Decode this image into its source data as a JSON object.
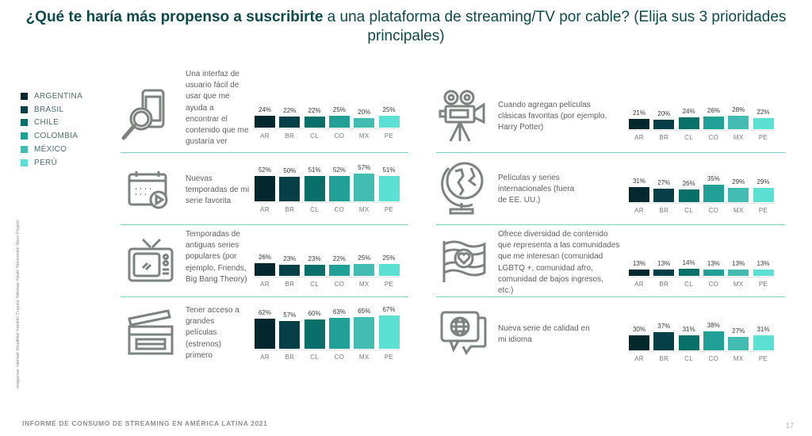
{
  "title": {
    "bold": "¿Qué te haría más propenso a suscribirte",
    "regular": " a una plataforma de streaming/TV por cable? (Elija sus 3 prioridades principales)"
  },
  "legend": [
    {
      "label": "ARGENTINA",
      "color": "#02272c"
    },
    {
      "label": "BRASIL",
      "color": "#073f49"
    },
    {
      "label": "CHILE",
      "color": "#087068"
    },
    {
      "label": "COLOMBIA",
      "color": "#20a096"
    },
    {
      "label": "MÉXICO",
      "color": "#43bcb3"
    },
    {
      "label": "PERÚ",
      "color": "#5ce0d4"
    }
  ],
  "credit": "Imágenes: rahmat/ Smalllike/ monkik/ Cuputo/ Nithinan Tatah/ Nociconist/ Noun Project",
  "footer": "INFORME DE CONSUMO DE STREAMING EN AMÉRICA LATINA 2021",
  "page_number": "17",
  "categories": [
    "AR",
    "BR",
    "CL",
    "CO",
    "MX",
    "PE"
  ],
  "panels": [
    {
      "icon": "phone-search-icon",
      "text": "Una interfaz de usuario fácil de usar que me ayuda a encontrar el contenido que me gustaría ver",
      "values_label": [
        "24%",
        "22%",
        "22%",
        "25%",
        "20%",
        "25%"
      ]
    },
    {
      "icon": "calendar-play-icon",
      "text": "Nuevas temporadas de mi serie favorita",
      "values_label": [
        "52%",
        "50%",
        "51%",
        "52%",
        "57%",
        "51%"
      ]
    },
    {
      "icon": "retro-tv-icon",
      "text": "Temporadas de antiguas series populares (por ejemplo, Friends, Big Bang Theory)",
      "values_label": [
        "26%",
        "23%",
        "23%",
        "22%",
        "25%",
        "25%"
      ]
    },
    {
      "icon": "clapperboard-icon",
      "text": "Tener acceso a grandes películas (estrenos) primero",
      "values_label": [
        "62%",
        "57%",
        "60%",
        "63%",
        "65%",
        "67%"
      ]
    },
    {
      "icon": "film-camera-icon",
      "text": "Cuando agregan películas clásicas favoritas (por ejemplo, Harry Potter)",
      "values_label": [
        "21%",
        "20%",
        "24%",
        "26%",
        "28%",
        "22%"
      ]
    },
    {
      "icon": "globe-icon",
      "text": "Películas y series internacionales (fuera de EE. UU.)",
      "values_label": [
        "31%",
        "27%",
        "26%",
        "35%",
        "29%",
        "29%"
      ]
    },
    {
      "icon": "flag-heart-icon",
      "text": "Ofrece diversidad de contenido que representa a las comunidades que me interesan (comunidad LGBTQ +, comunidad afro, comunidad de bajos ingresos, etc.)",
      "values_label": [
        "13%",
        "13%",
        "14%",
        "13%",
        "13%",
        "13%"
      ]
    },
    {
      "icon": "speech-globe-icon",
      "text": "Nueva serie de calidad en mi idioma",
      "values_label": [
        "30%",
        "37%",
        "31%",
        "38%",
        "27%",
        "31%"
      ]
    }
  ],
  "chart_data": {
    "type": "bar",
    "title": "¿Qué te haría más propenso a suscribirte a una plataforma de streaming/TV por cable? (Elija sus 3 prioridades principales)",
    "categories": [
      "AR",
      "BR",
      "CL",
      "CO",
      "MX",
      "PE"
    ],
    "legend": [
      "ARGENTINA",
      "BRASIL",
      "CHILE",
      "COLOMBIA",
      "MÉXICO",
      "PERÚ"
    ],
    "legend_position": "left",
    "ylabel": "%",
    "grid": false,
    "panels": [
      {
        "label": "Una interfaz de usuario fácil de usar que me ayuda a encontrar el contenido que me gustaría ver",
        "values": [
          24,
          22,
          22,
          25,
          20,
          25
        ]
      },
      {
        "label": "Nuevas temporadas de mi serie favorita",
        "values": [
          52,
          50,
          51,
          52,
          57,
          51
        ]
      },
      {
        "label": "Temporadas de antiguas series populares (por ejemplo, Friends, Big Bang Theory)",
        "values": [
          26,
          23,
          23,
          22,
          25,
          25
        ]
      },
      {
        "label": "Tener acceso a grandes películas (estrenos) primero",
        "values": [
          62,
          57,
          60,
          63,
          65,
          67
        ]
      },
      {
        "label": "Cuando agregan películas clásicas favoritas (por ejemplo, Harry Potter)",
        "values": [
          21,
          20,
          24,
          26,
          28,
          22
        ]
      },
      {
        "label": "Películas y series internacionales (fuera de EE. UU.)",
        "values": [
          31,
          27,
          26,
          35,
          29,
          29
        ]
      },
      {
        "label": "Ofrece diversidad de contenido que representa a las comunidades que me interesan (comunidad LGBTQ +, comunidad afro, comunidad de bajos ingresos, etc.)",
        "values": [
          13,
          13,
          14,
          13,
          13,
          13
        ]
      },
      {
        "label": "Nueva serie de calidad en mi idioma",
        "values": [
          30,
          37,
          31,
          38,
          27,
          31
        ]
      }
    ]
  }
}
